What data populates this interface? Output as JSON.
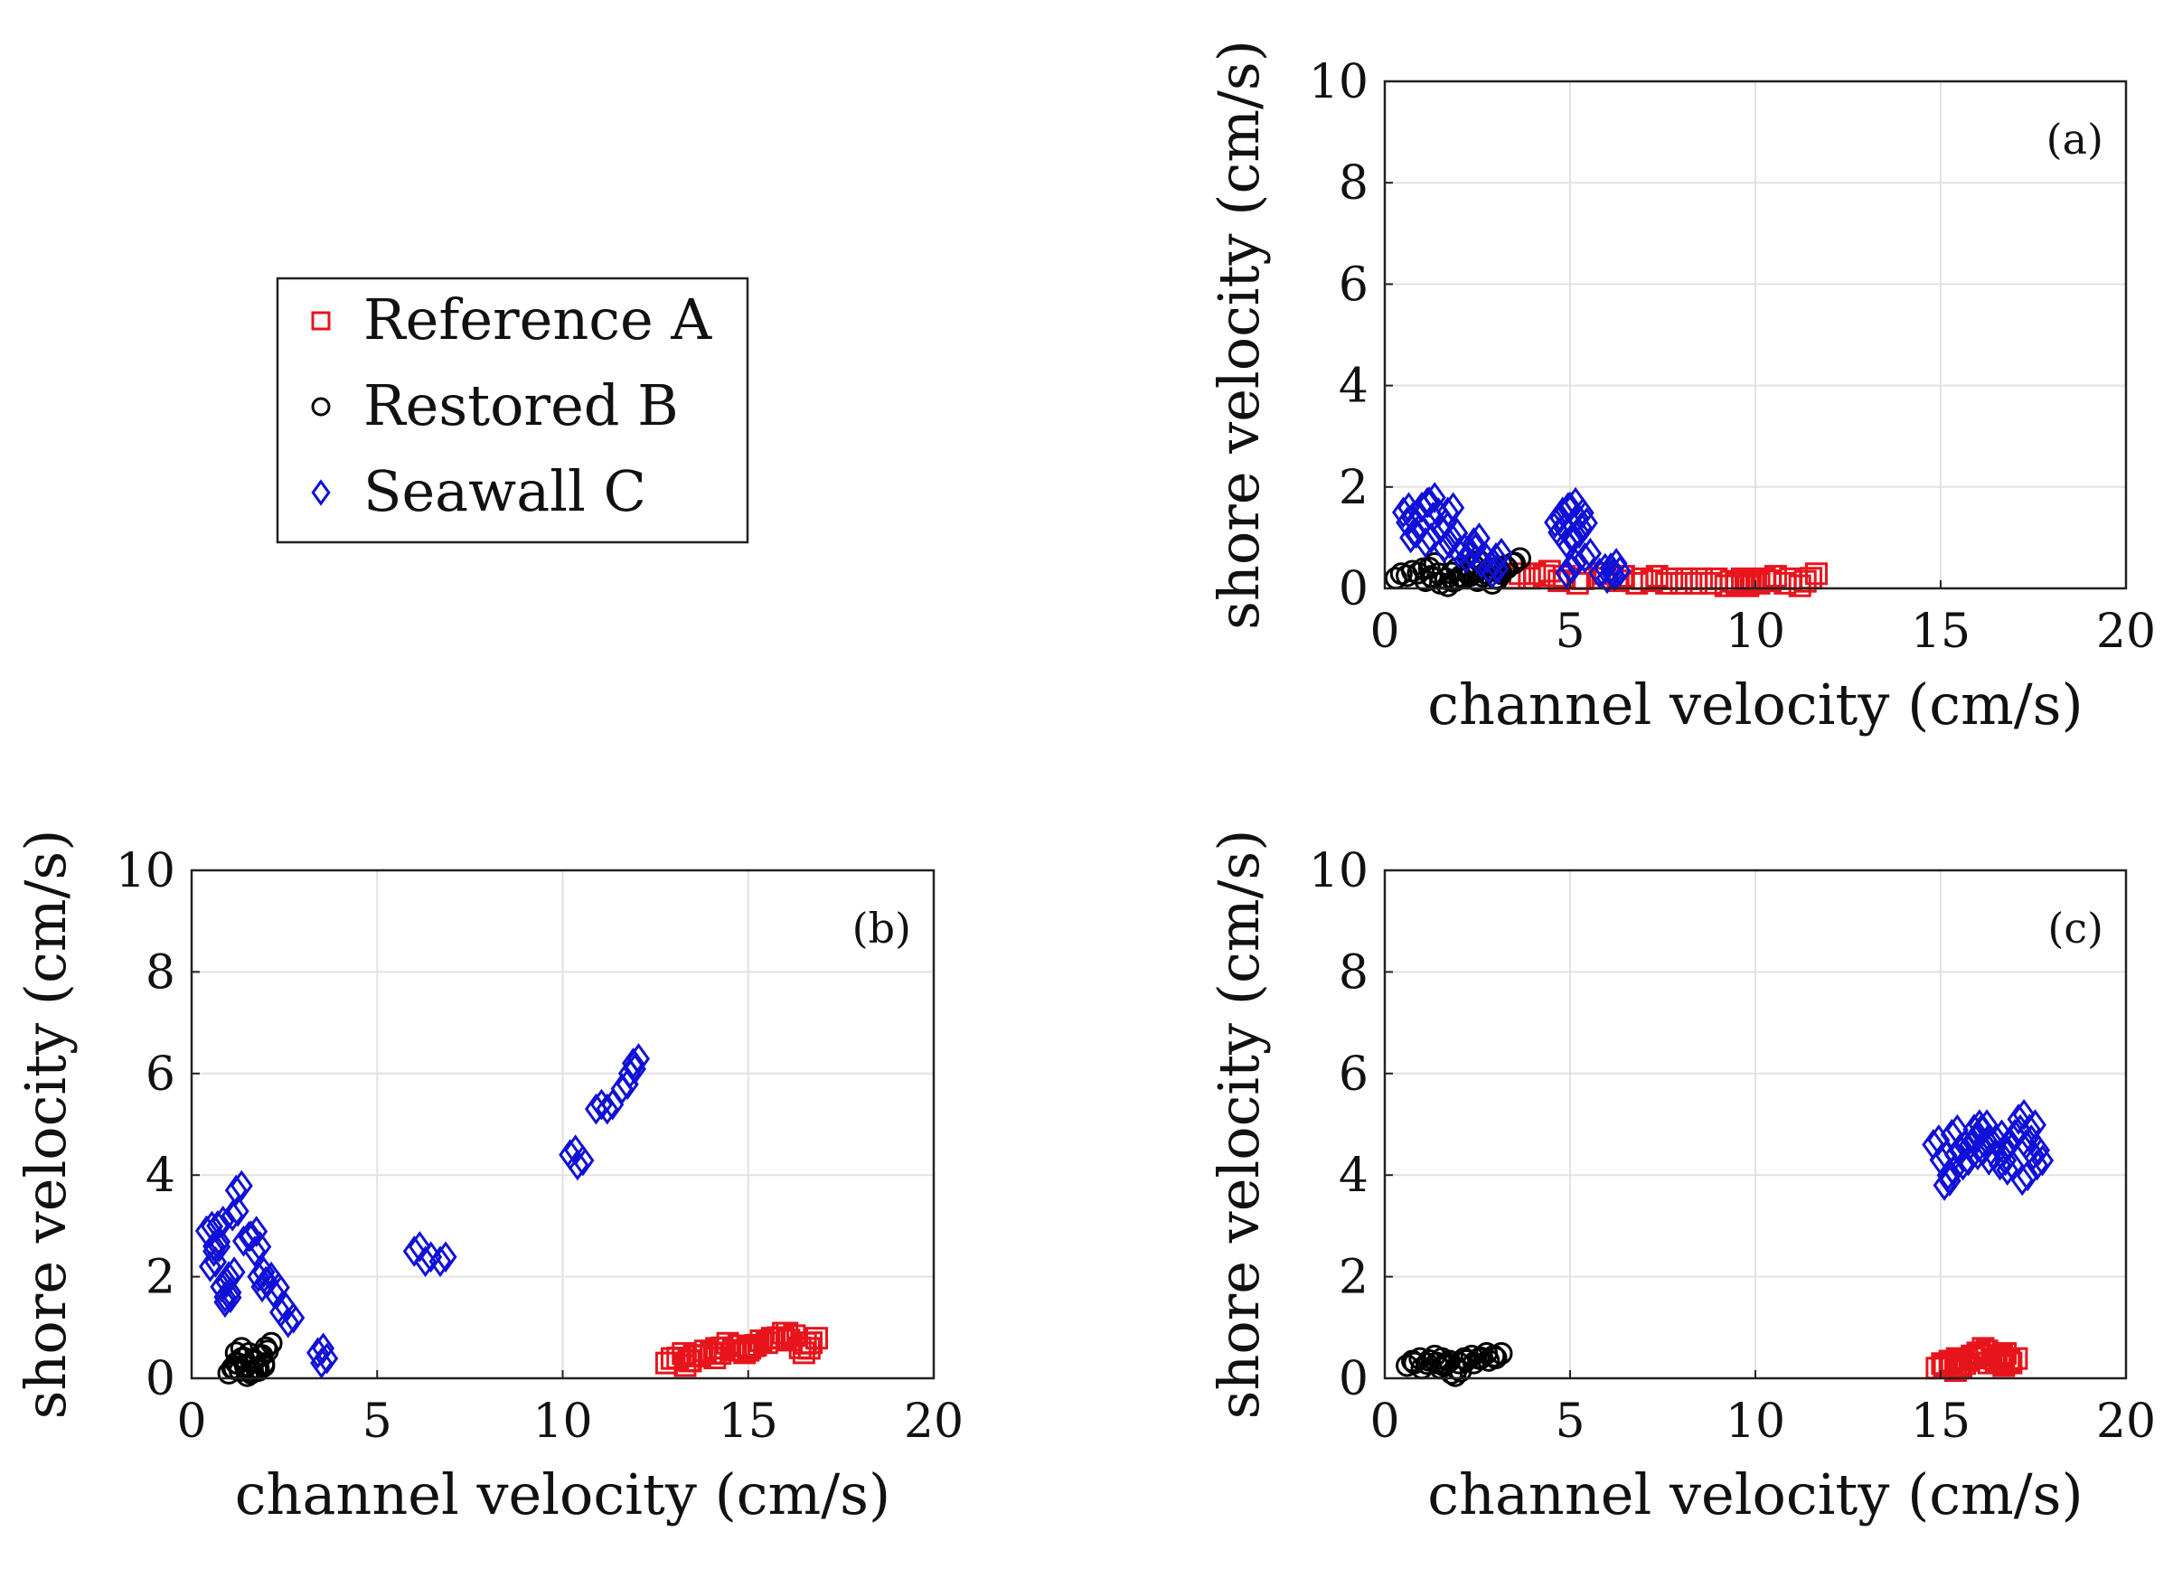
{
  "colors": {
    "reference": "#e8141c",
    "restored": "#000000",
    "seawall": "#1010d8"
  },
  "legend": {
    "entries": [
      {
        "key": "reference",
        "label": "Reference A",
        "marker": "square"
      },
      {
        "key": "restored",
        "label": "Restored B",
        "marker": "circle"
      },
      {
        "key": "seawall",
        "label": "Seawall C",
        "marker": "diamond"
      }
    ]
  },
  "chart_data": [
    {
      "type": "scatter",
      "panel": "(a)",
      "xlabel": "channel velocity (cm/s)",
      "ylabel": "shore velocity (cm/s)",
      "xlim": [
        0,
        20
      ],
      "ylim": [
        0,
        10
      ],
      "xticks": [
        "0",
        "5",
        "10",
        "15",
        "20"
      ],
      "yticks": [
        "0",
        "2",
        "4",
        "6",
        "8",
        "10"
      ],
      "grid": true,
      "series": [
        {
          "name": "Reference A",
          "key": "reference",
          "x": [
            3.5,
            3.9,
            4.3,
            4.7,
            5.2,
            5.8,
            6.3,
            6.8,
            7.2,
            7.6,
            8.0,
            8.4,
            8.8,
            9.2,
            9.5,
            9.8,
            10.1,
            10.4,
            10.8,
            11.2,
            11.5
          ],
          "y": [
            0.2,
            0.2,
            0.25,
            0.15,
            0.1,
            0.2,
            0.15,
            0.1,
            0.15,
            0.1,
            0.1,
            0.1,
            0.1,
            0.05,
            0.1,
            0.05,
            0.1,
            0.15,
            0.1,
            0.05,
            0.2
          ]
        },
        {
          "name": "Restored B",
          "key": "restored",
          "x": [
            0.3,
            0.6,
            0.9,
            1.1,
            1.3,
            1.5,
            1.7,
            1.9,
            2.1,
            2.3,
            2.5,
            2.7,
            2.9,
            3.1,
            3.3,
            3.5,
            1.2,
            1.8,
            2.4,
            3.0
          ],
          "y": [
            0.2,
            0.25,
            0.3,
            0.15,
            0.2,
            0.1,
            0.05,
            0.15,
            0.2,
            0.25,
            0.15,
            0.3,
            0.1,
            0.35,
            0.4,
            0.5,
            0.4,
            0.3,
            0.45,
            0.2
          ]
        },
        {
          "name": "Seawall C",
          "key": "seawall",
          "x": [
            0.5,
            0.6,
            0.8,
            1.0,
            1.1,
            1.3,
            1.5,
            1.6,
            1.8,
            2.0,
            2.2,
            2.4,
            2.6,
            2.8,
            3.0,
            0.7,
            1.2,
            1.7,
            2.3,
            2.9,
            4.6,
            4.8,
            5.0,
            5.2,
            5.3,
            5.1,
            4.9,
            4.7,
            5.4,
            5.0,
            4.9,
            5.8,
            6.0,
            6.1,
            6.2
          ],
          "y": [
            1.5,
            1.3,
            1.1,
            1.6,
            0.9,
            1.4,
            1.2,
            0.8,
            1.0,
            0.7,
            0.6,
            0.9,
            0.5,
            0.4,
            0.6,
            1.0,
            1.7,
            1.5,
            0.7,
            0.3,
            1.3,
            1.5,
            1.6,
            1.4,
            1.2,
            1.0,
            0.9,
            1.1,
            0.6,
            0.4,
            0.3,
            0.3,
            0.2,
            0.4,
            0.25
          ]
        }
      ]
    },
    {
      "type": "scatter",
      "panel": "(b)",
      "xlabel": "channel velocity (cm/s)",
      "ylabel": "shore velocity (cm/s)",
      "xlim": [
        0,
        20
      ],
      "ylim": [
        0,
        10
      ],
      "xticks": [
        "0",
        "5",
        "10",
        "15",
        "20"
      ],
      "yticks": [
        "0",
        "2",
        "4",
        "6",
        "8",
        "10"
      ],
      "grid": true,
      "series": [
        {
          "name": "Reference A",
          "key": "reference",
          "x": [
            12.8,
            13.1,
            13.4,
            13.7,
            14.0,
            14.3,
            14.6,
            14.9,
            15.2,
            15.5,
            15.8,
            16.1,
            16.4,
            16.7,
            13.3,
            14.1,
            15.0,
            15.9,
            16.5
          ],
          "y": [
            0.3,
            0.4,
            0.35,
            0.45,
            0.5,
            0.6,
            0.55,
            0.5,
            0.65,
            0.7,
            0.8,
            0.75,
            0.6,
            0.7,
            0.25,
            0.4,
            0.55,
            0.8,
            0.5
          ]
        },
        {
          "name": "Restored B",
          "key": "restored",
          "x": [
            1.0,
            1.1,
            1.2,
            1.3,
            1.4,
            1.5,
            1.6,
            1.7,
            1.8,
            1.9,
            2.0,
            1.2,
            1.5,
            1.8
          ],
          "y": [
            0.1,
            0.2,
            0.3,
            0.15,
            0.4,
            0.25,
            0.1,
            0.35,
            0.2,
            0.45,
            0.6,
            0.5,
            0.05,
            0.15
          ]
        },
        {
          "name": "Seawall C",
          "key": "seawall",
          "x": [
            0.4,
            0.5,
            0.6,
            0.7,
            0.8,
            0.9,
            1.0,
            1.1,
            1.2,
            1.4,
            1.6,
            1.7,
            1.8,
            2.0,
            2.2,
            2.4,
            2.6,
            0.6,
            0.9,
            1.9,
            3.4,
            3.5,
            6.0,
            6.3,
            6.7,
            10.2,
            10.4,
            10.9,
            11.2,
            11.6,
            11.8,
            11.9
          ],
          "y": [
            2.9,
            2.2,
            2.5,
            3.0,
            1.8,
            1.6,
            2.0,
            3.2,
            3.7,
            2.7,
            2.8,
            2.5,
            2.0,
            1.9,
            1.7,
            1.3,
            1.1,
            2.6,
            1.5,
            1.8,
            0.5,
            0.3,
            2.5,
            2.3,
            2.3,
            4.4,
            4.2,
            5.3,
            5.3,
            5.7,
            6.0,
            6.2
          ]
        }
      ]
    },
    {
      "type": "scatter",
      "panel": "(c)",
      "xlabel": "channel velocity (cm/s)",
      "ylabel": "shore velocity (cm/s)",
      "xlim": [
        0,
        20
      ],
      "ylim": [
        0,
        10
      ],
      "xticks": [
        "0",
        "5",
        "10",
        "15",
        "20"
      ],
      "yticks": [
        "0",
        "2",
        "4",
        "6",
        "8",
        "10"
      ],
      "grid": true,
      "series": [
        {
          "name": "Reference A",
          "key": "reference",
          "x": [
            14.9,
            15.1,
            15.3,
            15.5,
            15.7,
            15.9,
            16.1,
            16.3,
            16.5,
            16.7,
            16.9,
            15.4,
            16.0,
            16.6
          ],
          "y": [
            0.2,
            0.25,
            0.3,
            0.2,
            0.35,
            0.4,
            0.45,
            0.3,
            0.35,
            0.25,
            0.3,
            0.15,
            0.5,
            0.4
          ]
        },
        {
          "name": "Restored B",
          "key": "restored",
          "x": [
            0.6,
            0.8,
            1.0,
            1.2,
            1.4,
            1.6,
            1.8,
            2.0,
            2.2,
            2.4,
            2.6,
            2.8,
            3.0,
            1.5,
            1.9
          ],
          "y": [
            0.25,
            0.3,
            0.2,
            0.35,
            0.3,
            0.25,
            0.1,
            0.3,
            0.35,
            0.3,
            0.4,
            0.35,
            0.4,
            0.2,
            0.05
          ]
        },
        {
          "name": "Seawall C",
          "key": "seawall",
          "x": [
            14.8,
            15.0,
            15.2,
            15.3,
            15.5,
            15.6,
            15.8,
            16.0,
            16.1,
            16.3,
            16.5,
            16.7,
            16.8,
            17.0,
            17.1,
            17.3,
            17.5,
            17.6,
            15.1,
            15.9,
            16.6,
            17.2,
            15.4,
            16.2,
            17.4
          ],
          "y": [
            4.6,
            4.3,
            4.0,
            4.8,
            4.5,
            4.2,
            4.6,
            4.4,
            4.9,
            4.3,
            4.7,
            4.5,
            4.1,
            4.8,
            5.1,
            4.6,
            4.4,
            4.2,
            3.8,
            4.9,
            4.2,
            3.9,
            4.4,
            4.6,
            4.9
          ]
        }
      ]
    }
  ]
}
